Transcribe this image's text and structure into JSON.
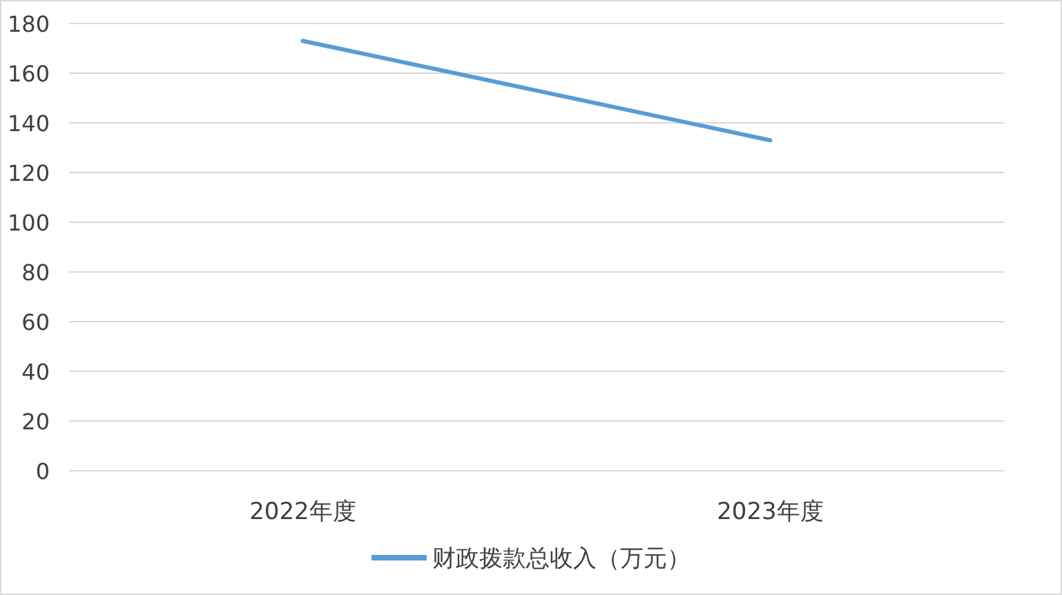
{
  "chart_data": {
    "type": "line",
    "categories": [
      "2022年度",
      "2023年度"
    ],
    "series": [
      {
        "name": "财政拨款总收入（万元）",
        "color": "#5b9bd5",
        "values": [
          173,
          133
        ]
      }
    ],
    "ylim": [
      0,
      180
    ],
    "yticks": [
      0,
      20,
      40,
      60,
      80,
      100,
      120,
      140,
      160,
      180
    ],
    "grid": "y",
    "legend": "bottom",
    "marker": "none",
    "line_style": "solid"
  }
}
